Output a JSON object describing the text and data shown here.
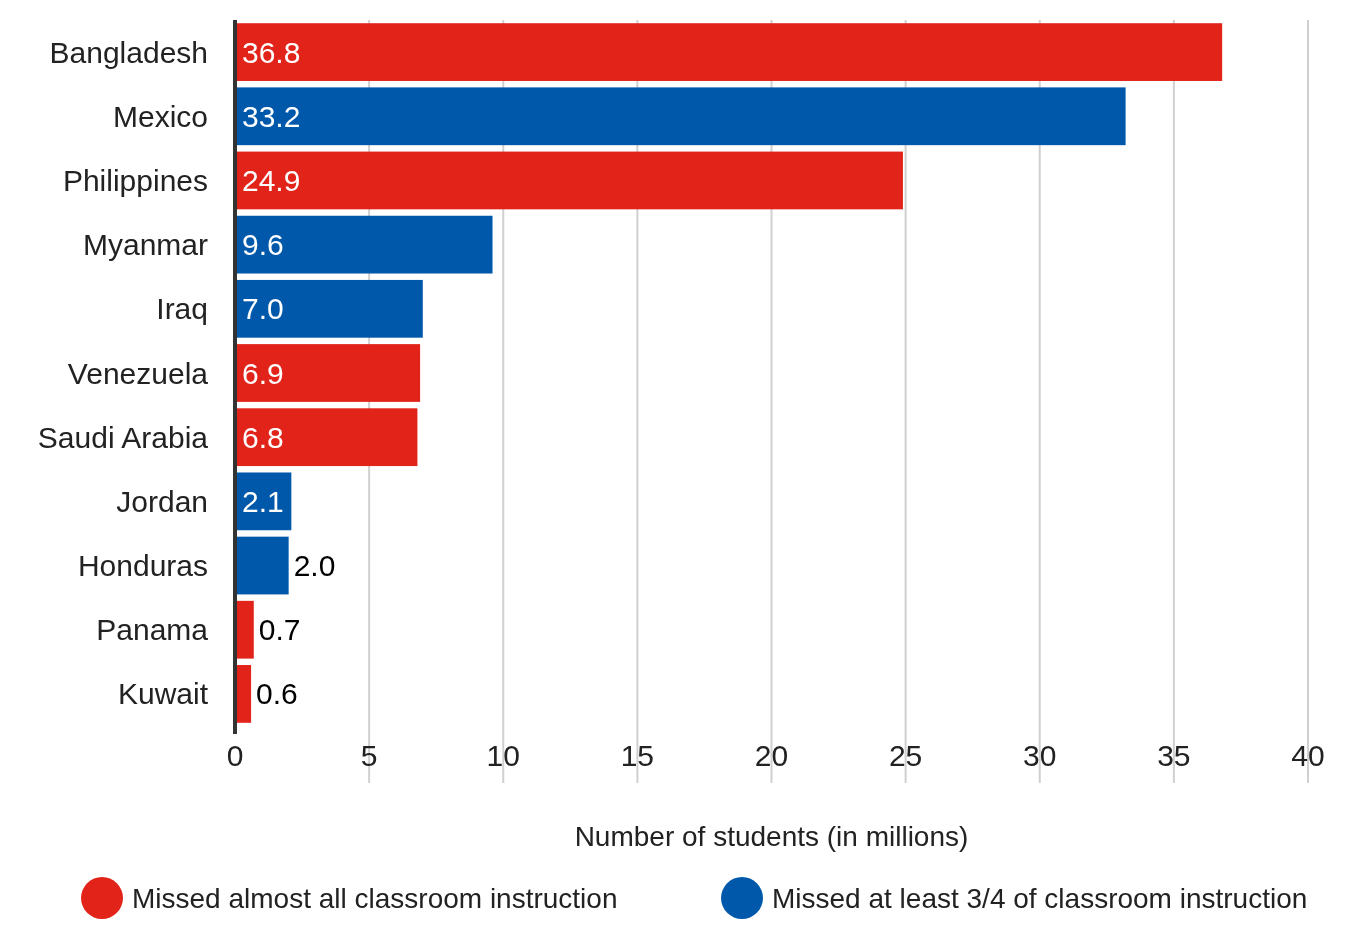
{
  "chart_data": {
    "type": "bar",
    "orientation": "horizontal",
    "xlabel": "Number of students (in millions)",
    "categories": [
      "Bangladesh",
      "Mexico",
      "Philippines",
      "Myanmar",
      "Iraq",
      "Venezuela",
      "Saudi Arabia",
      "Jordan",
      "Honduras",
      "Panama",
      "Kuwait"
    ],
    "series": [
      {
        "name": "Missed almost all classroom instruction",
        "color": "#e2231a",
        "values": [
          36.8,
          null,
          24.9,
          null,
          null,
          6.9,
          6.8,
          null,
          null,
          0.7,
          0.6
        ],
        "value_labels": [
          "36.8",
          null,
          "24.9",
          null,
          null,
          "6.9",
          "6.8",
          null,
          null,
          "0.7",
          "0.6"
        ]
      },
      {
        "name": "Missed at least 3/4 of classroom instruction",
        "color": "#0058ab",
        "values": [
          null,
          33.2,
          null,
          9.6,
          7.0,
          null,
          null,
          2.1,
          2.0,
          null,
          null
        ],
        "value_labels": [
          null,
          "33.2",
          null,
          "9.6",
          "7.0",
          null,
          null,
          "2.1",
          "2.0",
          null,
          null
        ]
      }
    ],
    "xlim": [
      0,
      40
    ],
    "xticks": [
      0,
      5,
      10,
      15,
      20,
      25,
      30,
      35,
      40
    ],
    "grid": "x",
    "legend": "bottom"
  }
}
